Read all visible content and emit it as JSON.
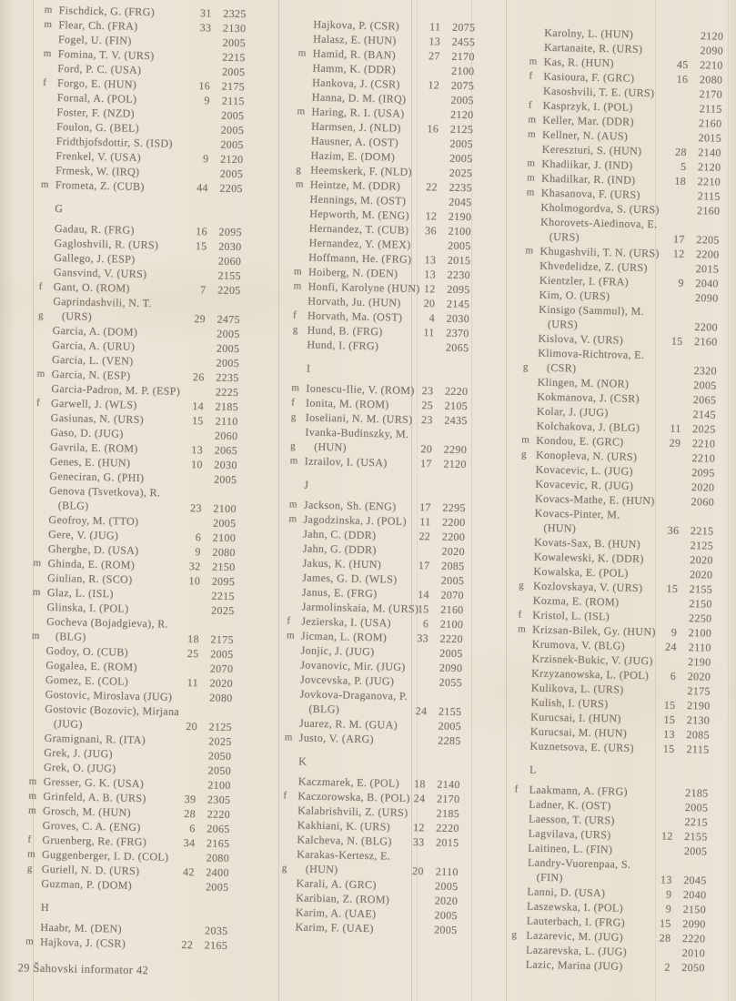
{
  "footer": {
    "text": "29 Šahovski informator 42"
  },
  "colors": {
    "paper": "#e9e3d5",
    "ink": "#82756a",
    "fold_line": "#9a8a74"
  },
  "columns": [
    {
      "rows": [
        {
          "p": "m",
          "n": "Fischdick, G. (FRG)",
          "g": "31",
          "r": "2325"
        },
        {
          "p": "m",
          "n": "Flear, Ch. (FRA)",
          "g": "33",
          "r": "2130"
        },
        {
          "n": "Fogel, U. (FIN)",
          "r": "2005"
        },
        {
          "p": "m",
          "n": "Fomina, T. V. (URS)",
          "r": "2215"
        },
        {
          "n": "Ford, P. C. (USA)",
          "r": "2005"
        },
        {
          "p": "f",
          "n": "Forgo, E. (HUN)",
          "g": "16",
          "r": "2175"
        },
        {
          "n": "Fornal, A. (POL)",
          "g": "9",
          "r": "2115"
        },
        {
          "n": "Foster, F. (NZD)",
          "r": "2005"
        },
        {
          "n": "Foulon, G. (BEL)",
          "r": "2005"
        },
        {
          "n": "Fridthjofsdottir, S. (ISD)",
          "r": "2005"
        },
        {
          "n": "Frenkel, V. (USA)",
          "g": "9",
          "r": "2120"
        },
        {
          "n": "Frmesk, W. (IRQ)",
          "r": "2005"
        },
        {
          "p": "m",
          "n": "Frometa, Z. (CUB)",
          "g": "44",
          "r": "2205"
        },
        {
          "h": "G"
        },
        {
          "n": "Gadau, R. (FRG)",
          "g": "16",
          "r": "2095"
        },
        {
          "n": "Gagloshvili, R. (URS)",
          "g": "15",
          "r": "2030"
        },
        {
          "n": "Gallego, J. (ESP)",
          "r": "2060"
        },
        {
          "n": "Gansvind, V. (URS)",
          "r": "2155"
        },
        {
          "p": "f",
          "n": "Gant, O. (ROM)",
          "g": "7",
          "r": "2205"
        },
        {
          "p": "g",
          "n": "Gaprindashvili, N. T.",
          "n2": "(URS)",
          "g": "29",
          "r": "2475"
        },
        {
          "n": "Garcia, A. (DOM)",
          "r": "2005"
        },
        {
          "n": "Garcia, A. (URU)",
          "r": "2005"
        },
        {
          "n": "Garcia, L. (VEN)",
          "r": "2005"
        },
        {
          "p": "m",
          "n": "Garcia, N. (ESP)",
          "g": "26",
          "r": "2235"
        },
        {
          "n": "Garcia-Padron, M. P. (ESP)",
          "r": "2225"
        },
        {
          "p": "f",
          "n": "Garwell, J. (WLS)",
          "g": "14",
          "r": "2185"
        },
        {
          "n": "Gasiunas, N. (URS)",
          "g": "15",
          "r": "2110"
        },
        {
          "n": "Gaso, D. (JUG)",
          "r": "2060"
        },
        {
          "n": "Gavrila, E. (ROM)",
          "g": "13",
          "r": "2065"
        },
        {
          "n": "Genes, E. (HUN)",
          "g": "10",
          "r": "2030"
        },
        {
          "n": "Geneciran, G. (PHI)",
          "r": "2005"
        },
        {
          "n": "Genova (Tsvetkova), R.",
          "n2": "(BLG)",
          "g": "23",
          "r": "2100"
        },
        {
          "n": "Geofroy, M. (TTO)",
          "r": "2005"
        },
        {
          "n": "Gere, V. (JUG)",
          "g": "6",
          "r": "2100"
        },
        {
          "n": "Gherghe, D. (USA)",
          "g": "9",
          "r": "2080"
        },
        {
          "p": "m",
          "n": "Ghinda, E. (ROM)",
          "g": "32",
          "r": "2150"
        },
        {
          "n": "Giulian, R. (SCO)",
          "g": "10",
          "r": "2095"
        },
        {
          "p": "m",
          "n": "Glaz, L. (ISL)",
          "r": "2215"
        },
        {
          "n": "Glinska, I. (POL)",
          "r": "2025"
        },
        {
          "p": "m",
          "n": "Gocheva (Bojadgieva), R.",
          "n2": "(BLG)",
          "g": "18",
          "r": "2175"
        },
        {
          "n": "Godoy, O. (CUB)",
          "g": "25",
          "r": "2005"
        },
        {
          "n": "Gogalea, E. (ROM)",
          "r": "2070"
        },
        {
          "n": "Gomez, E. (COL)",
          "g": "11",
          "r": "2020"
        },
        {
          "n": "Gostovic, Miroslava (JUG)",
          "r": "2080"
        },
        {
          "n": "Gostovic (Bozovic), Mirjana",
          "n2": "(JUG)",
          "g": "20",
          "r": "2125"
        },
        {
          "n": "Gramignani, R. (ITA)",
          "r": "2025"
        },
        {
          "n": "Grek, J. (JUG)",
          "r": "2050"
        },
        {
          "n": "Grek, O. (JUG)",
          "r": "2050"
        },
        {
          "p": "m",
          "n": "Gresser, G. K. (USA)",
          "r": "2100"
        },
        {
          "p": "m",
          "n": "Grinfeld, A. B. (URS)",
          "g": "39",
          "r": "2305"
        },
        {
          "p": "m",
          "n": "Grosch, M. (HUN)",
          "g": "28",
          "r": "2220"
        },
        {
          "n": "Groves, C. A. (ENG)",
          "g": "6",
          "r": "2065"
        },
        {
          "p": "f",
          "n": "Gruenberg, Re. (FRG)",
          "g": "34",
          "r": "2165"
        },
        {
          "p": "m",
          "n": "Guggenberger, I. D. (COL)",
          "r": "2080"
        },
        {
          "p": "g",
          "n": "Guriell, N. D. (URS)",
          "g": "42",
          "r": "2400"
        },
        {
          "n": "Guzman, P. (DOM)",
          "r": "2005"
        },
        {
          "h": "H"
        },
        {
          "n": "Haabr, M. (DEN)",
          "r": "2035"
        },
        {
          "p": "m",
          "n": "Hajkova, J. (CSR)",
          "g": "22",
          "r": "2165"
        }
      ]
    },
    {
      "rows": [
        {
          "n": "Hajkova, P. (CSR)",
          "g": "11",
          "r": "2075"
        },
        {
          "n": "Halasz, E. (HUN)",
          "g": "13",
          "r": "2455"
        },
        {
          "p": "m",
          "n": "Hamid, R. (BAN)",
          "g": "27",
          "r": "2170"
        },
        {
          "n": "Hamm, K. (DDR)",
          "r": "2100"
        },
        {
          "n": "Hankova, J. (CSR)",
          "g": "12",
          "r": "2075"
        },
        {
          "n": "Hanna, D. M. (IRQ)",
          "r": "2005"
        },
        {
          "p": "m",
          "n": "Haring, R. I. (USA)",
          "r": "2120"
        },
        {
          "n": "Harmsen, J. (NLD)",
          "g": "16",
          "r": "2125"
        },
        {
          "n": "Hausner, A. (OST)",
          "r": "2005"
        },
        {
          "n": "Hazim, E. (DOM)",
          "r": "2005"
        },
        {
          "p": "g",
          "n": "Heemskerk, F. (NLD)",
          "r": "2025"
        },
        {
          "p": "m",
          "n": "Heintze, M. (DDR)",
          "g": "22",
          "r": "2235"
        },
        {
          "n": "Hennings, M. (OST)",
          "r": "2045"
        },
        {
          "n": "Hepworth, M. (ENG)",
          "g": "12",
          "r": "2190"
        },
        {
          "n": "Hernandez, T. (CUB)",
          "g": "36",
          "r": "2100"
        },
        {
          "n": "Hernandez, Y. (MEX)",
          "r": "2005"
        },
        {
          "n": "Hoffmann, He. (FRG)",
          "g": "13",
          "r": "2015"
        },
        {
          "p": "m",
          "n": "Hoiberg, N. (DEN)",
          "g": "13",
          "r": "2230"
        },
        {
          "p": "m",
          "n": "Honfi, Karolyne (HUN)",
          "g": "12",
          "r": "2095"
        },
        {
          "n": "Horvath, Ju. (HUN)",
          "g": "20",
          "r": "2145"
        },
        {
          "p": "f",
          "n": "Horvath, Ma. (OST)",
          "g": "4",
          "r": "2030"
        },
        {
          "p": "g",
          "n": "Hund, B. (FRG)",
          "g": "11",
          "r": "2370"
        },
        {
          "n": "Hund, I. (FRG)",
          "r": "2065"
        },
        {
          "h": "I"
        },
        {
          "p": "m",
          "n": "Ionescu-Ilie, V. (ROM)",
          "g": "23",
          "r": "2220"
        },
        {
          "p": "f",
          "n": "Ionita, M. (ROM)",
          "g": "25",
          "r": "2105"
        },
        {
          "p": "g",
          "n": "Ioseliani, N. M. (URS)",
          "g": "23",
          "r": "2435"
        },
        {
          "p": "g",
          "n": "Ivanka-Budinszky, M.",
          "n2": "(HUN)",
          "g": "20",
          "r": "2290"
        },
        {
          "p": "m",
          "n": "Izrailov, I. (USA)",
          "g": "17",
          "r": "2120"
        },
        {
          "h": "J"
        },
        {
          "p": "m",
          "n": "Jackson, Sh. (ENG)",
          "g": "17",
          "r": "2295"
        },
        {
          "p": "m",
          "n": "Jagodzinska, J. (POL)",
          "g": "11",
          "r": "2200"
        },
        {
          "n": "Jahn, C. (DDR)",
          "g": "22",
          "r": "2200"
        },
        {
          "n": "Jahn, G. (DDR)",
          "r": "2020"
        },
        {
          "n": "Jakus, K. (HUN)",
          "g": "17",
          "r": "2085"
        },
        {
          "n": "James, G. D. (WLS)",
          "r": "2005"
        },
        {
          "n": "Janus, E. (FRG)",
          "g": "14",
          "r": "2070"
        },
        {
          "n": "Jarmolinskaia, M. (URS)",
          "g": "15",
          "r": "2160"
        },
        {
          "p": "f",
          "n": "Jezierska, I. (USA)",
          "g": "6",
          "r": "2100"
        },
        {
          "p": "m",
          "n": "Jicman, L. (ROM)",
          "g": "33",
          "r": "2220"
        },
        {
          "n": "Jonjic, J. (JUG)",
          "r": "2005"
        },
        {
          "n": "Jovanovic, Mir. (JUG)",
          "r": "2090"
        },
        {
          "n": "Jovcevska, P. (JUG)",
          "r": "2055"
        },
        {
          "n": "Jovkova-Draganova, P.",
          "n2": "(BLG)",
          "g": "24",
          "r": "2155"
        },
        {
          "n": "Juarez, R. M. (GUA)",
          "r": "2005"
        },
        {
          "p": "m",
          "n": "Justo, V. (ARG)",
          "r": "2285"
        },
        {
          "h": "K"
        },
        {
          "n": "Kaczmarek, E. (POL)",
          "g": "18",
          "r": "2140"
        },
        {
          "p": "f",
          "n": "Kaczorowska, B. (POL)",
          "g": "24",
          "r": "2170"
        },
        {
          "n": "Kalabrishvili, Z. (URS)",
          "r": "2185"
        },
        {
          "n": "Kakhiani, K. (URS)",
          "g": "12",
          "r": "2220"
        },
        {
          "n": "Kalcheva, N. (BLG)",
          "g": "33",
          "r": "2015"
        },
        {
          "p": "g",
          "n": "Karakas-Kertesz, E.",
          "n2": "(HUN)",
          "g": "20",
          "r": "2110"
        },
        {
          "n": "Karali, A. (GRC)",
          "r": "2005"
        },
        {
          "n": "Karibian, Z. (ROM)",
          "r": "2020"
        },
        {
          "n": "Karim, A. (UAE)",
          "r": "2005"
        },
        {
          "n": "Karim, F. (UAE)",
          "r": "2005"
        }
      ]
    },
    {
      "rows": [
        {
          "n": "Karolny, L. (HUN)",
          "r": "2120"
        },
        {
          "n": "Kartanaite, R. (URS)",
          "r": "2090"
        },
        {
          "p": "m",
          "n": "Kas, R. (HUN)",
          "g": "45",
          "r": "2210"
        },
        {
          "p": "f",
          "n": "Kasioura, F. (GRC)",
          "g": "16",
          "r": "2080"
        },
        {
          "n": "Kasoshvili, T. E. (URS)",
          "r": "2170"
        },
        {
          "p": "f",
          "n": "Kasprzyk, I. (POL)",
          "r": "2115"
        },
        {
          "p": "m",
          "n": "Keller, Mar. (DDR)",
          "r": "2160"
        },
        {
          "p": "m",
          "n": "Kellner, N. (AUS)",
          "r": "2015"
        },
        {
          "n": "Kereszturi, S. (HUN)",
          "g": "28",
          "r": "2140"
        },
        {
          "p": "m",
          "n": "Khadiikar, J. (IND)",
          "g": "5",
          "r": "2120"
        },
        {
          "p": "m",
          "n": "Khadilkar, R. (IND)",
          "g": "18",
          "r": "2210"
        },
        {
          "p": "m",
          "n": "Khasanova, F. (URS)",
          "r": "2115"
        },
        {
          "n": "Kholmogordva, S. (URS)",
          "r": "2160"
        },
        {
          "n": "Khorovets-Aiedinova, E.",
          "n2": "(URS)",
          "g": "17",
          "r": "2205"
        },
        {
          "p": "m",
          "n": "Khugashvili, T. N. (URS)",
          "g": "12",
          "r": "2200"
        },
        {
          "n": "Khvedelidze, Z. (URS)",
          "r": "2015"
        },
        {
          "n": "Kientzler, I. (FRA)",
          "g": "9",
          "r": "2040"
        },
        {
          "n": "Kim, O. (URS)",
          "r": "2090"
        },
        {
          "n": "Kinsigo (Sammul), M.",
          "n2": "(URS)",
          "r": "2200"
        },
        {
          "n": "Kislova, V. (URS)",
          "g": "15",
          "r": "2160"
        },
        {
          "p": "g",
          "n": "Klimova-Richtrova, E.",
          "n2": "(CSR)",
          "r": "2320"
        },
        {
          "n": "Klingen, M. (NOR)",
          "r": "2005"
        },
        {
          "n": "Kokmanova, J. (CSR)",
          "r": "2065"
        },
        {
          "n": "Kolar, J. (JUG)",
          "r": "2145"
        },
        {
          "n": "Kolchakova, J. (BLG)",
          "g": "11",
          "r": "2025"
        },
        {
          "p": "m",
          "n": "Kondou, E. (GRC)",
          "g": "29",
          "r": "2210"
        },
        {
          "p": "g",
          "n": "Konopleva, N. (URS)",
          "r": "2210"
        },
        {
          "n": "Kovacevic, L. (JUG)",
          "r": "2095"
        },
        {
          "n": "Kovacevic, R. (JUG)",
          "r": "2020"
        },
        {
          "n": "Kovacs-Mathe, E. (HUN)",
          "r": "2060"
        },
        {
          "n": "Kovacs-Pinter, M.",
          "n2": "(HUN)",
          "g": "36",
          "r": "2215"
        },
        {
          "n": "Kovats-Sax, B. (HUN)",
          "r": "2125"
        },
        {
          "n": "Kowalewski, K. (DDR)",
          "r": "2020"
        },
        {
          "n": "Kowalska, E. (POL)",
          "r": "2020"
        },
        {
          "p": "g",
          "n": "Kozlovskaya, V. (URS)",
          "g": "15",
          "r": "2155"
        },
        {
          "n": "Kozma, E. (ROM)",
          "r": "2150"
        },
        {
          "p": "f",
          "n": "Kristol, L. (ISL)",
          "r": "2250"
        },
        {
          "p": "m",
          "n": "Krizsan-Bilek, Gy. (HUN)",
          "g": "9",
          "r": "2100"
        },
        {
          "n": "Krumova, V. (BLG)",
          "g": "24",
          "r": "2110"
        },
        {
          "n": "Krzisnek-Bukic, V. (JUG)",
          "r": "2190"
        },
        {
          "n": "Krzyzanowska, L. (POL)",
          "g": "6",
          "r": "2020"
        },
        {
          "n": "Kulikova, L. (URS)",
          "r": "2175"
        },
        {
          "n": "Kulish, I. (URS)",
          "g": "15",
          "r": "2190"
        },
        {
          "n": "Kurucsai, I. (HUN)",
          "g": "15",
          "r": "2130"
        },
        {
          "n": "Kurucsai, M. (HUN)",
          "g": "13",
          "r": "2085"
        },
        {
          "n": "Kuznetsova, E. (URS)",
          "g": "15",
          "r": "2115"
        },
        {
          "h": "L"
        },
        {
          "p": "f",
          "n": "Laakmann, A. (FRG)",
          "r": "2185"
        },
        {
          "n": "Ladner, K. (OST)",
          "r": "2005"
        },
        {
          "n": "Laesson, T. (URS)",
          "r": "2215"
        },
        {
          "n": "Lagvilava, (URS)",
          "g": "12",
          "r": "2155"
        },
        {
          "n": "Laitinen, L. (FIN)",
          "r": "2005"
        },
        {
          "n": "Landry-Vuorenpaa, S.",
          "n2": "(FIN)",
          "g": "13",
          "r": "2045"
        },
        {
          "n": "Lanni, D. (USA)",
          "g": "9",
          "r": "2040"
        },
        {
          "n": "Laszewska, I. (POL)",
          "g": "9",
          "r": "2150"
        },
        {
          "n": "Lauterbach, I. (FRG)",
          "g": "15",
          "r": "2090"
        },
        {
          "p": "g",
          "n": "Lazarevic, M. (JUG)",
          "g": "28",
          "r": "2220"
        },
        {
          "n": "Lazarevska, L. (JUG)",
          "r": "2010"
        },
        {
          "n": "Lazic, Marina (JUG)",
          "g": "2",
          "r": "2050"
        }
      ]
    }
  ]
}
